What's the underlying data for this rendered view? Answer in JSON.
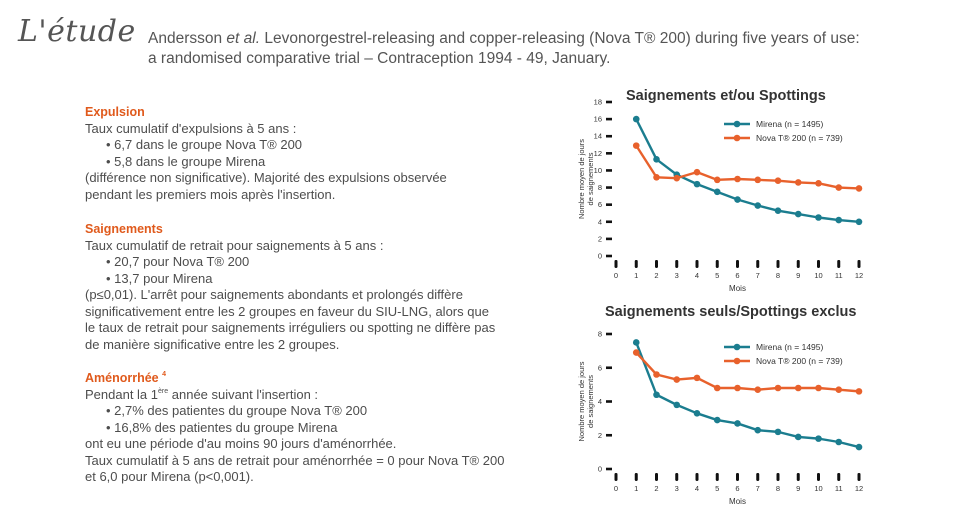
{
  "header": {
    "label": "L'étude",
    "dash": "–",
    "ref_authors": "Andersson",
    "ref_etal": "et al.",
    "ref_line1_rest": "Levonorgestrel-releasing and copper-releasing (Nova T® 200) during five years of use:",
    "ref_line2": "a randomised comparative trial – Contraception 1994 - 49, January."
  },
  "expulsion": {
    "title": "Expulsion",
    "intro": "Taux cumulatif d'expulsions à 5 ans :",
    "bullets": [
      "6,7 dans le groupe Nova T® 200",
      "5,8 dans le groupe Mirena"
    ],
    "text1": "(différence non significative). Majorité des expulsions observée",
    "text2": "pendant les premiers mois après l'insertion."
  },
  "saignements": {
    "title": "Saignements",
    "intro": "Taux cumulatif de retrait pour saignements à 5 ans :",
    "bullets": [
      "20,7 pour Nova T® 200",
      "13,7 pour Mirena"
    ],
    "lines": [
      "(p≤0,01). L'arrêt pour saignements abondants et prolongés diffère",
      "significativement entre les 2 groupes en faveur du SIU-LNG, alors que",
      "le taux de retrait pour saignements irréguliers ou spotting ne diffère pas",
      "de manière significative entre les 2 groupes."
    ]
  },
  "amenorrhee": {
    "title": "Aménorrhée",
    "title_sup": "4",
    "intro_pre": "Pendant la 1",
    "intro_sup": "ère",
    "intro_post": " année suivant l'insertion :",
    "bullets": [
      "2,7% des patientes du groupe Nova T® 200",
      "16,8% des patientes du groupe Mirena"
    ],
    "lines": [
      "ont eu une période d'au moins 90 jours d'aménorrhée.",
      "Taux cumulatif à 5 ans de retrait pour aménorrhée = 0 pour Nova T® 200",
      "et 6,0 pour Mirena (p<0,001)."
    ]
  },
  "colors": {
    "mirena": "#1b7d8f",
    "novat": "#e8612c",
    "accent": "#e05a1c"
  },
  "chart_data": [
    {
      "type": "line",
      "title": "Saignements et/ou Spottings",
      "xlabel": "Mois",
      "ylabel_line1": "Nombre moyen de jours",
      "ylabel_line2": "de saignements",
      "x": [
        0,
        1,
        2,
        3,
        4,
        5,
        6,
        7,
        8,
        9,
        10,
        11,
        12
      ],
      "xlim": [
        0,
        12
      ],
      "ylim": [
        0,
        18
      ],
      "yticks": [
        0,
        2,
        4,
        6,
        8,
        10,
        12,
        14,
        16,
        18
      ],
      "legend": "top-right",
      "series": [
        {
          "name": "Mirena (n = 1495)",
          "color": "#1b7d8f",
          "x": [
            1,
            2,
            3,
            4,
            5,
            6,
            7,
            8,
            9,
            10,
            11,
            12
          ],
          "values": [
            16.0,
            11.3,
            9.5,
            8.4,
            7.5,
            6.6,
            5.9,
            5.3,
            4.9,
            4.5,
            4.2,
            4.0
          ]
        },
        {
          "name": "Nova T® 200 (n = 739)",
          "color": "#e8612c",
          "x": [
            1,
            2,
            3,
            4,
            5,
            6,
            7,
            8,
            9,
            10,
            11,
            12
          ],
          "values": [
            12.9,
            9.2,
            9.1,
            9.8,
            8.9,
            9.0,
            8.9,
            8.8,
            8.6,
            8.5,
            8.0,
            7.9
          ]
        }
      ]
    },
    {
      "type": "line",
      "title": "Saignements seuls/Spottings exclus",
      "xlabel": "Mois",
      "ylabel_line1": "Nombre moyen de jours",
      "ylabel_line2": "de saignements",
      "x": [
        0,
        1,
        2,
        3,
        4,
        5,
        6,
        7,
        8,
        9,
        10,
        11,
        12
      ],
      "xlim": [
        0,
        12
      ],
      "ylim": [
        0,
        8
      ],
      "yticks": [
        0,
        2,
        4,
        6,
        8
      ],
      "legend": "top-right",
      "series": [
        {
          "name": "Mirena (n = 1495)",
          "color": "#1b7d8f",
          "x": [
            1,
            2,
            3,
            4,
            5,
            6,
            7,
            8,
            9,
            10,
            11,
            12
          ],
          "values": [
            7.5,
            4.4,
            3.8,
            3.3,
            2.9,
            2.7,
            2.3,
            2.2,
            1.9,
            1.8,
            1.6,
            1.3
          ]
        },
        {
          "name": "Nova T® 200 (n = 739)",
          "color": "#e8612c",
          "x": [
            1,
            2,
            3,
            4,
            5,
            6,
            7,
            8,
            9,
            10,
            11,
            12
          ],
          "values": [
            6.9,
            5.6,
            5.3,
            5.4,
            4.8,
            4.8,
            4.7,
            4.8,
            4.8,
            4.8,
            4.7,
            4.6
          ]
        }
      ]
    }
  ]
}
